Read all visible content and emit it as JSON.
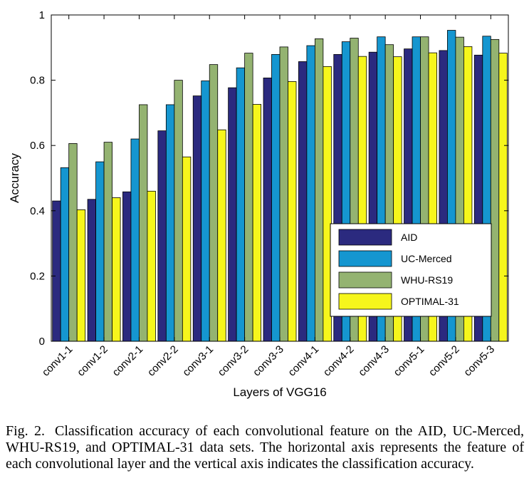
{
  "chart_data": {
    "type": "bar",
    "xlabel": "Layers of VGG16",
    "ylabel": "Accuracy",
    "ylim": [
      0,
      1
    ],
    "yticks": [
      0,
      0.2,
      0.4,
      0.6,
      0.8,
      1
    ],
    "ytick_labels": [
      "0",
      "0.2",
      "0.4",
      "0.6",
      "0.8",
      "1"
    ],
    "legend_position": "bottom-right",
    "grid": false,
    "categories": [
      "conv1-1",
      "conv1-2",
      "conv2-1",
      "conv2-2",
      "conv3-1",
      "conv3-2",
      "conv3-3",
      "conv4-1",
      "conv4-2",
      "conv4-3",
      "conv5-1",
      "conv5-2",
      "conv5-3"
    ],
    "series": [
      {
        "name": "AID",
        "color": "#2b2a7f",
        "values": [
          0.43,
          0.435,
          0.458,
          0.645,
          0.752,
          0.777,
          0.807,
          0.857,
          0.879,
          0.886,
          0.896,
          0.891,
          0.877
        ]
      },
      {
        "name": "UC-Merced",
        "color": "#1596d0",
        "values": [
          0.532,
          0.55,
          0.62,
          0.725,
          0.798,
          0.838,
          0.879,
          0.906,
          0.918,
          0.933,
          0.933,
          0.953,
          0.935
        ]
      },
      {
        "name": "WHU-RS19",
        "color": "#94b371",
        "values": [
          0.606,
          0.61,
          0.725,
          0.8,
          0.848,
          0.883,
          0.902,
          0.927,
          0.929,
          0.909,
          0.933,
          0.932,
          0.925
        ]
      },
      {
        "name": "OPTIMAL-31",
        "color": "#f6f61c",
        "values": [
          0.403,
          0.44,
          0.46,
          0.565,
          0.648,
          0.726,
          0.796,
          0.842,
          0.873,
          0.872,
          0.884,
          0.903,
          0.883
        ]
      }
    ]
  },
  "caption": {
    "label": "Fig. 2.",
    "text": "Classification accuracy of each convolutional feature on the AID, UC-Merced, WHU-RS19, and OPTIMAL-31 data sets. The horizontal axis represents the feature of each convolutional layer and the vertical axis indicates the classification accuracy."
  }
}
